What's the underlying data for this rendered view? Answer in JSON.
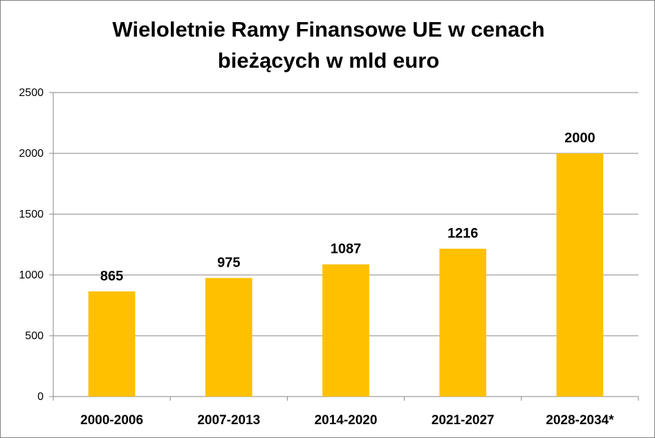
{
  "chart_data": {
    "type": "bar",
    "title": "Wieloletnie Ramy Finansowe UE w cenach bieżących w mld euro",
    "title_lines": [
      "Wieloletnie Ramy Finansowe UE w cenach",
      "bieżących w mld euro"
    ],
    "categories": [
      "2000-2006",
      "2007-2013",
      "2014-2020",
      "2021-2027",
      "2028-2034*"
    ],
    "values": [
      865,
      975,
      1087,
      1216,
      2000
    ],
    "ylim": [
      0,
      2500
    ],
    "yticks": [
      0,
      500,
      1000,
      1500,
      2000,
      2500
    ],
    "xlabel": "",
    "ylabel": "",
    "grid": true,
    "legend": "none",
    "data_labels": true,
    "bar_color": "#FFC000",
    "grid_color": "#868686"
  }
}
